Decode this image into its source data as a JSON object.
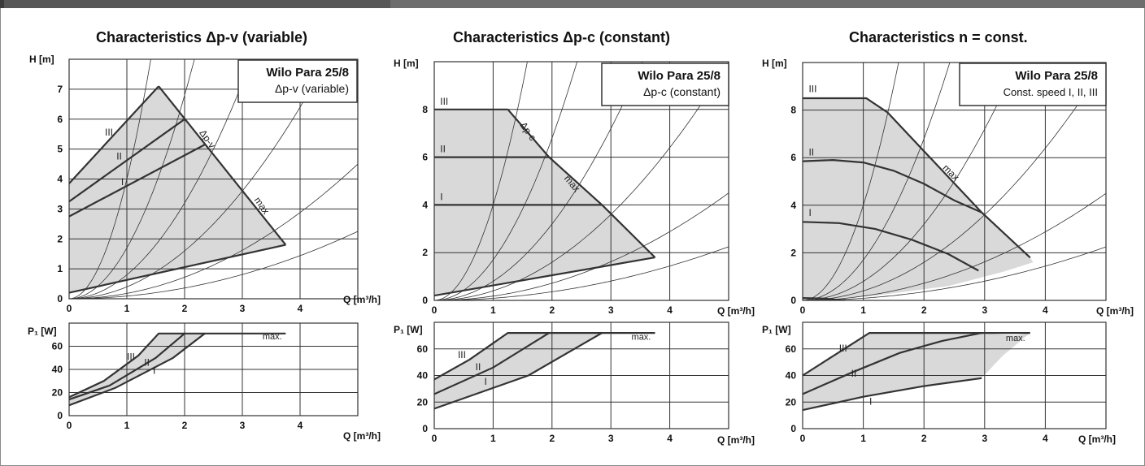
{
  "page": {
    "titles": [
      "Characteristics Δp-v (variable)",
      "Characteristics Δp-c (constant)",
      "Characteristics n = const."
    ]
  },
  "colors": {
    "fill": "#d9d9d9",
    "line": "#333333",
    "grid": "#333333",
    "thin": "#333333"
  },
  "chart_data": [
    {
      "type": "line",
      "title": "Characteristics Δp-v (variable)",
      "xlabel": "Q [m³/h]",
      "ylabel": "H [m]",
      "xlim": [
        0,
        5
      ],
      "ylim": [
        0,
        8
      ],
      "x_ticks": [
        0,
        1,
        2,
        3,
        4
      ],
      "y_ticks": [
        0,
        1,
        2,
        3,
        4,
        5,
        6,
        7
      ],
      "legend_box": {
        "line1": "Wilo Para 25/8",
        "line2": "Δp-v (variable)"
      },
      "region_outline": [
        [
          0,
          0.2
        ],
        [
          0,
          3.85
        ],
        [
          1.55,
          7.1
        ],
        [
          3.75,
          1.8
        ],
        [
          0,
          0.2
        ]
      ],
      "series": [
        {
          "name": "III",
          "points": [
            [
              0,
              3.85
            ],
            [
              1.55,
              7.1
            ]
          ]
        },
        {
          "name": "II",
          "points": [
            [
              0,
              3.25
            ],
            [
              2.0,
              6.0
            ]
          ]
        },
        {
          "name": "I",
          "points": [
            [
              0,
              2.75
            ],
            [
              2.35,
              5.15
            ]
          ]
        },
        {
          "name": "max",
          "points": [
            [
              1.55,
              7.1
            ],
            [
              3.75,
              1.8
            ]
          ]
        },
        {
          "name": "",
          "points": [
            [
              0,
              0.2
            ],
            [
              3.75,
              1.8
            ]
          ]
        }
      ],
      "labels": [
        {
          "text": "III",
          "x": 0.62,
          "y": 5.45
        },
        {
          "text": "II",
          "x": 0.82,
          "y": 4.65
        },
        {
          "text": "I",
          "x": 0.9,
          "y": 3.8
        },
        {
          "text": "Δp-v",
          "x": 2.25,
          "y": 5.55,
          "rot": 55
        },
        {
          "text": "max",
          "x": 3.2,
          "y": 3.3,
          "rot": 55
        }
      ],
      "annotations": [
        "Δp-v",
        "max"
      ]
    },
    {
      "type": "line",
      "title": "",
      "xlabel": "Q [m³/h]",
      "ylabel": "P₁ [W]",
      "xlim": [
        0,
        5
      ],
      "ylim": [
        0,
        80
      ],
      "x_ticks": [
        0,
        1,
        2,
        3,
        4
      ],
      "y_ticks": [
        0,
        20,
        40,
        60
      ],
      "series": [
        {
          "name": "III",
          "points": [
            [
              0,
              16
            ],
            [
              0.6,
              30
            ],
            [
              1.2,
              52
            ],
            [
              1.55,
              71
            ],
            [
              3.75,
              71
            ]
          ]
        },
        {
          "name": "II",
          "points": [
            [
              0,
              14
            ],
            [
              0.7,
              26
            ],
            [
              1.5,
              50
            ],
            [
              2.0,
              71
            ]
          ]
        },
        {
          "name": "I",
          "points": [
            [
              0,
              9
            ],
            [
              0.8,
              24
            ],
            [
              1.8,
              50
            ],
            [
              2.35,
              71
            ]
          ]
        }
      ],
      "labels": [
        {
          "text": "III",
          "x": 1.0,
          "y": 48
        },
        {
          "text": "II",
          "x": 1.3,
          "y": 43
        },
        {
          "text": "I",
          "x": 1.45,
          "y": 36
        },
        {
          "text": "max.",
          "x": 3.35,
          "y": 66
        }
      ]
    },
    {
      "type": "line",
      "title": "Characteristics Δp-c (constant)",
      "xlabel": "Q [m³/h]",
      "ylabel": "H [m]",
      "xlim": [
        0,
        5
      ],
      "ylim": [
        0,
        10
      ],
      "x_ticks": [
        0,
        1,
        2,
        3,
        4
      ],
      "y_ticks": [
        0,
        2,
        4,
        6,
        8
      ],
      "legend_box": {
        "line1": "Wilo Para 25/8",
        "line2": "Δp-c (constant)"
      },
      "series": [
        {
          "name": "III",
          "points": [
            [
              0,
              8
            ],
            [
              1.25,
              8
            ]
          ]
        },
        {
          "name": "II",
          "points": [
            [
              0,
              6
            ],
            [
              1.95,
              6
            ]
          ]
        },
        {
          "name": "I",
          "points": [
            [
              0,
              4
            ],
            [
              2.85,
              4
            ]
          ]
        },
        {
          "name": "max",
          "points": [
            [
              1.25,
              8
            ],
            [
              1.95,
              6
            ],
            [
              2.85,
              4
            ],
            [
              3.75,
              1.8
            ]
          ]
        },
        {
          "name": "",
          "points": [
            [
              0,
              0.2
            ],
            [
              3.75,
              1.8
            ]
          ]
        }
      ],
      "labels": [
        {
          "text": "III",
          "x": 0.1,
          "y": 8.2
        },
        {
          "text": "II",
          "x": 0.1,
          "y": 6.2
        },
        {
          "text": "I",
          "x": 0.1,
          "y": 4.2
        },
        {
          "text": "Δp-c",
          "x": 1.45,
          "y": 7.35,
          "rot": 55
        },
        {
          "text": "max",
          "x": 2.2,
          "y": 5.1,
          "rot": 50
        }
      ],
      "annotations": [
        "Δp-c",
        "max"
      ]
    },
    {
      "type": "line",
      "title": "",
      "xlabel": "Q [m³/h]",
      "ylabel": "P₁ [W]",
      "xlim": [
        0,
        5
      ],
      "ylim": [
        0,
        80
      ],
      "x_ticks": [
        0,
        1,
        2,
        3,
        4
      ],
      "y_ticks": [
        0,
        20,
        40,
        60
      ],
      "series": [
        {
          "name": "III",
          "points": [
            [
              0,
              37
            ],
            [
              0.6,
              52
            ],
            [
              1.25,
              72
            ],
            [
              3.75,
              72
            ]
          ]
        },
        {
          "name": "II",
          "points": [
            [
              0,
              26
            ],
            [
              1.0,
              46
            ],
            [
              1.95,
              72
            ]
          ]
        },
        {
          "name": "I",
          "points": [
            [
              0,
              15
            ],
            [
              1.6,
              40
            ],
            [
              2.85,
              72
            ]
          ]
        }
      ],
      "labels": [
        {
          "text": "III",
          "x": 0.4,
          "y": 53
        },
        {
          "text": "II",
          "x": 0.7,
          "y": 44
        },
        {
          "text": "I",
          "x": 0.85,
          "y": 33
        },
        {
          "text": "max.",
          "x": 3.35,
          "y": 67
        }
      ]
    },
    {
      "type": "line",
      "title": "Characteristics n = const.",
      "xlabel": "Q [m³/h]",
      "ylabel": "H [m]",
      "xlim": [
        0,
        5
      ],
      "ylim": [
        0,
        10
      ],
      "x_ticks": [
        0,
        1,
        2,
        3,
        4
      ],
      "y_ticks": [
        0,
        2,
        4,
        6,
        8
      ],
      "legend_box": {
        "line1": "Wilo Para 25/8",
        "line2": "Const. speed I, II, III"
      },
      "series": [
        {
          "name": "III",
          "points": [
            [
              0,
              8.5
            ],
            [
              1.05,
              8.5
            ],
            [
              1.4,
              7.9
            ],
            [
              2.95,
              3.7
            ],
            [
              3.75,
              1.8
            ]
          ]
        },
        {
          "name": "II",
          "points": [
            [
              0,
              5.85
            ],
            [
              0.5,
              5.9
            ],
            [
              1.0,
              5.8
            ],
            [
              1.5,
              5.45
            ],
            [
              2.0,
              4.9
            ],
            [
              2.5,
              4.2
            ],
            [
              2.95,
              3.7
            ]
          ]
        },
        {
          "name": "I",
          "points": [
            [
              0,
              3.3
            ],
            [
              0.6,
              3.25
            ],
            [
              1.2,
              3.0
            ],
            [
              1.8,
              2.55
            ],
            [
              2.4,
              1.95
            ],
            [
              2.9,
              1.25
            ]
          ]
        },
        {
          "name": "",
          "points": [
            [
              0,
              0.1
            ],
            [
              0.35,
              0.08
            ],
            [
              0.7,
              0
            ]
          ]
        }
      ],
      "labels": [
        {
          "text": "III",
          "x": 0.1,
          "y": 8.75
        },
        {
          "text": "II",
          "x": 0.1,
          "y": 6.1
        },
        {
          "text": "I",
          "x": 0.1,
          "y": 3.55
        },
        {
          "text": "max",
          "x": 2.3,
          "y": 5.55,
          "rot": 45
        }
      ],
      "annotations": [
        "max"
      ]
    },
    {
      "type": "line",
      "title": "",
      "xlabel": "Q [m³/h]",
      "ylabel": "P₁ [W]",
      "xlim": [
        0,
        5
      ],
      "ylim": [
        0,
        80
      ],
      "x_ticks": [
        0,
        1,
        2,
        3,
        4
      ],
      "y_ticks": [
        0,
        20,
        40,
        60
      ],
      "series": [
        {
          "name": "III",
          "points": [
            [
              0,
              40
            ],
            [
              1.1,
              72
            ],
            [
              3.75,
              72
            ]
          ]
        },
        {
          "name": "II",
          "points": [
            [
              0,
              26
            ],
            [
              0.8,
              42
            ],
            [
              1.6,
              57
            ],
            [
              2.3,
              66
            ],
            [
              2.95,
              72
            ]
          ]
        },
        {
          "name": "I",
          "points": [
            [
              0,
              14
            ],
            [
              1.0,
              24
            ],
            [
              2.0,
              32
            ],
            [
              2.95,
              38
            ]
          ]
        }
      ],
      "labels": [
        {
          "text": "III",
          "x": 0.6,
          "y": 58
        },
        {
          "text": "II",
          "x": 0.8,
          "y": 39
        },
        {
          "text": "I",
          "x": 1.1,
          "y": 18
        },
        {
          "text": "max.",
          "x": 3.35,
          "y": 66
        }
      ]
    }
  ]
}
